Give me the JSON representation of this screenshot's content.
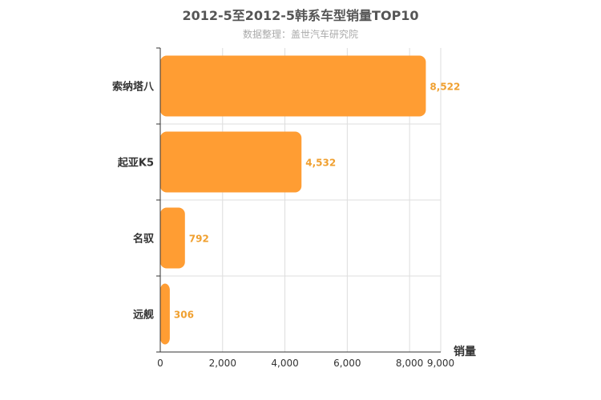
{
  "title": "2012-5至2012-5韩系车型销量TOP10",
  "subtitle": "数据整理：盖世汽车研究院",
  "colors": {
    "bar": "#ff9d33",
    "data_label": "#f0a030",
    "grid": "#dddddd",
    "axis": "#333333"
  },
  "chart_data": {
    "type": "bar",
    "orientation": "horizontal",
    "categories": [
      "索纳塔八",
      "起亚K5",
      "名驭",
      "远舰"
    ],
    "values": [
      8522,
      4532,
      792,
      306
    ],
    "value_labels": [
      "8,522",
      "4,532",
      "792",
      "306"
    ],
    "xlabel": "销量",
    "xlim": [
      0,
      9000
    ],
    "xticks": [
      0,
      2000,
      4000,
      6000,
      8000,
      9000
    ],
    "xtick_labels": [
      "0",
      "2,000",
      "4,000",
      "6,000",
      "8,000",
      "9,000"
    ],
    "grid": true,
    "legend": "none"
  }
}
